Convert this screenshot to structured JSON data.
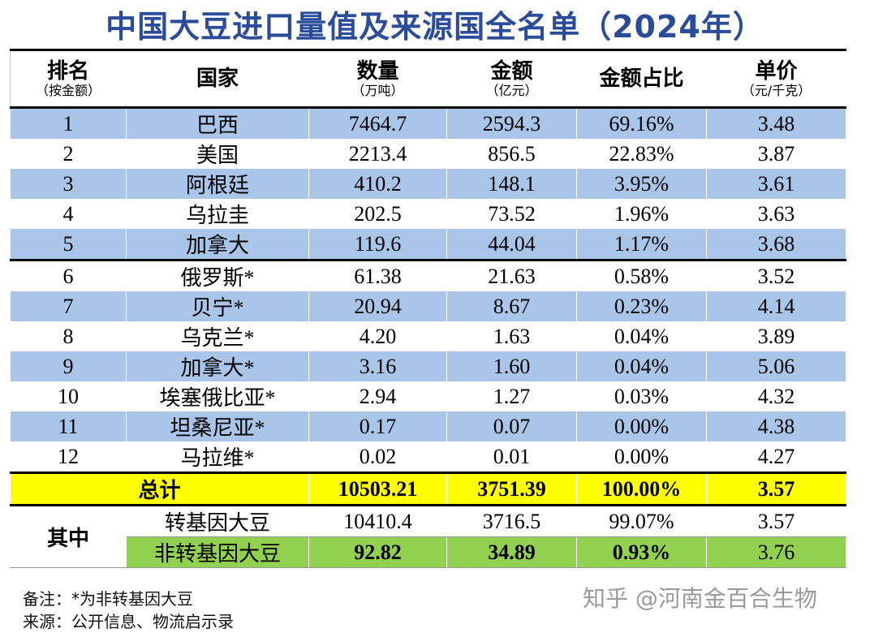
{
  "title": "中国大豆进口量值及来源国全名单（2024年）",
  "table": {
    "header": [
      {
        "label": "排名",
        "sub": "（按金额）"
      },
      {
        "label": "国家"
      },
      {
        "label": "数量",
        "sub": "（万吨）"
      },
      {
        "label": "金额",
        "sub": "（亿元）"
      },
      {
        "label": "金额占比"
      },
      {
        "label": "单价",
        "sub": "（元/千克）"
      }
    ],
    "rows": [
      [
        "1",
        "巴西",
        "7464.7",
        "2594.3",
        "69.16%",
        "3.48"
      ],
      [
        "2",
        "美国",
        "2213.4",
        "856.5",
        "22.83%",
        "3.87"
      ],
      [
        "3",
        "阿根廷",
        "410.2",
        "148.1",
        "3.95%",
        "3.61"
      ],
      [
        "4",
        "乌拉圭",
        "202.5",
        "73.52",
        "1.96%",
        "3.63"
      ],
      [
        "5",
        "加拿大",
        "119.6",
        "44.04",
        "1.17%",
        "3.68"
      ],
      [
        "6",
        "俄罗斯*",
        "61.38",
        "21.63",
        "0.58%",
        "3.52"
      ],
      [
        "7",
        "贝宁*",
        "20.94",
        "8.67",
        "0.23%",
        "4.14"
      ],
      [
        "8",
        "乌克兰*",
        "4.20",
        "1.63",
        "0.04%",
        "3.89"
      ],
      [
        "9",
        "加拿大*",
        "3.16",
        "1.60",
        "0.04%",
        "5.06"
      ],
      [
        "10",
        "埃塞俄比亚*",
        "2.94",
        "1.27",
        "0.03%",
        "4.32"
      ],
      [
        "11",
        "坦桑尼亚*",
        "0.17",
        "0.07",
        "0.00%",
        "4.38"
      ],
      [
        "12",
        "马拉维*",
        "0.02",
        "0.01",
        "0.00%",
        "4.27"
      ]
    ],
    "total": [
      "总计",
      "10503.21",
      "3751.39",
      "100.00%",
      "3.57"
    ],
    "breakdown": {
      "label": "其中",
      "rows": [
        [
          "转基因大豆",
          "10410.4",
          "3716.5",
          "99.07%",
          "3.57"
        ],
        [
          "非转基因大豆",
          "92.82",
          "34.89",
          "0.93%",
          "3.76"
        ]
      ]
    }
  },
  "notes": [
    "备注：*为非转基因大豆",
    "来源：公开信息、物流启示录"
  ],
  "watermark": "知乎 @河南金百合生物"
}
